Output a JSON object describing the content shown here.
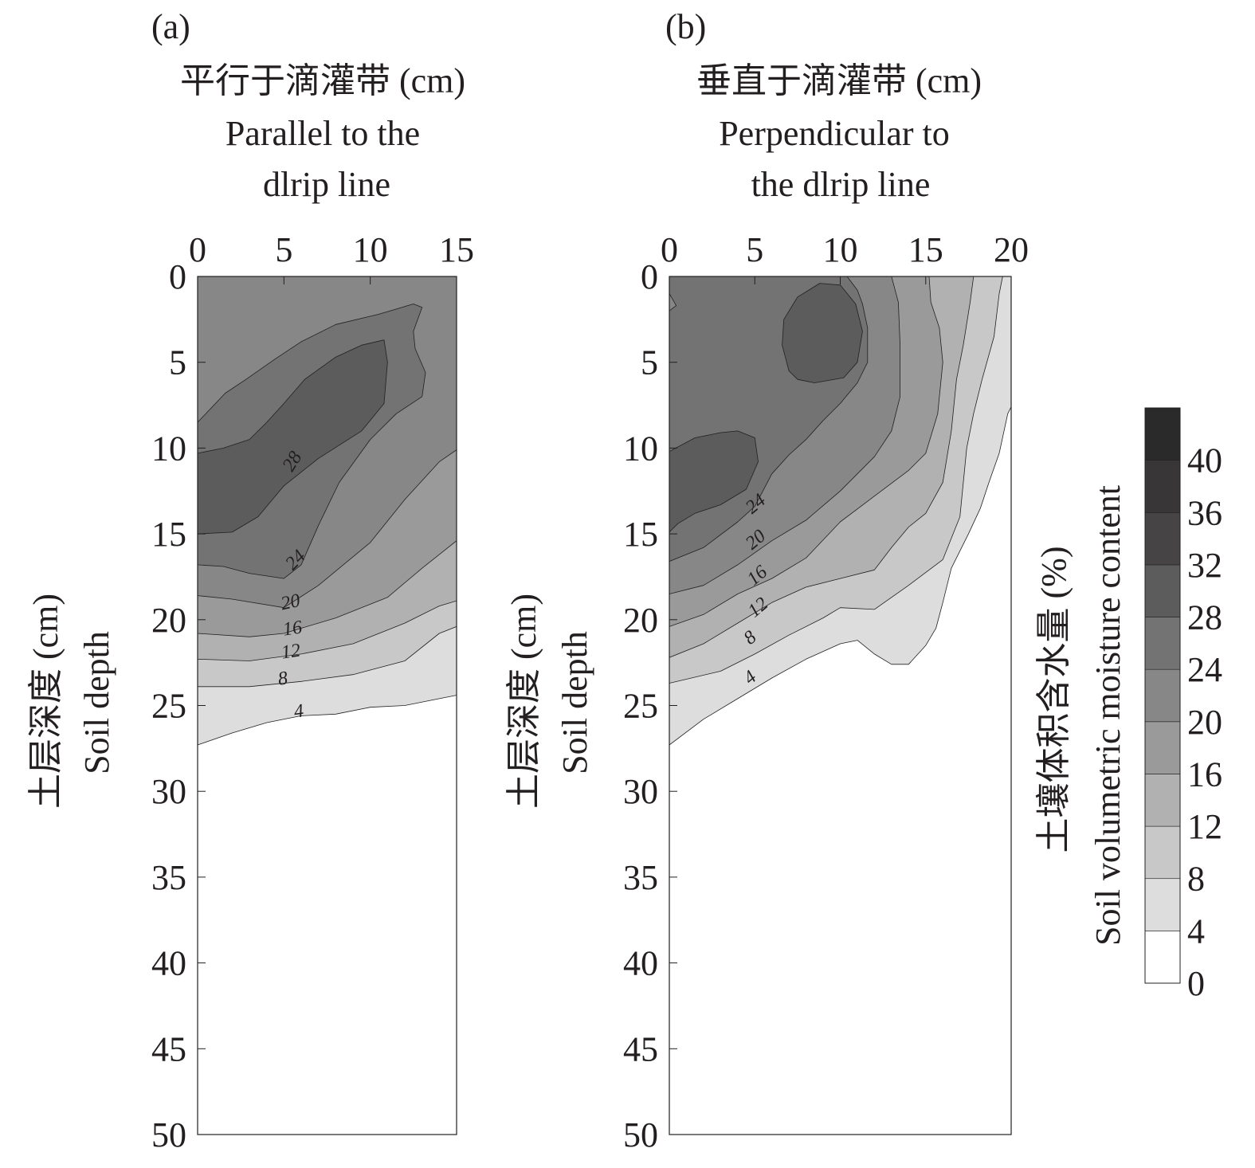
{
  "chart_data": [
    {
      "type": "contour",
      "panel_label": "(a)",
      "title_cn": "平行于滴灌带 (cm)",
      "title_en_line1": "Parallel to the",
      "title_en_line2": "dlrip line",
      "ylabel_cn": "土层深度 (cm)",
      "ylabel_en": "Soil depth",
      "x_ticks": [
        "0",
        "5",
        "10",
        "15"
      ],
      "y_ticks": [
        "0",
        "5",
        "10",
        "15",
        "20",
        "25",
        "30",
        "35",
        "40",
        "45",
        "50"
      ],
      "xlim": [
        0,
        15
      ],
      "ylim": [
        0,
        50
      ],
      "contour_labels": [
        "28",
        "24",
        "20",
        "16",
        "12",
        "8",
        "4"
      ],
      "contours": [
        {
          "level": 4,
          "boundary": [
            [
              0,
              27.3
            ],
            [
              2,
              26.6
            ],
            [
              4,
              26
            ],
            [
              6,
              25.6
            ],
            [
              8,
              25.5
            ],
            [
              10,
              25.1
            ],
            [
              12,
              25.0
            ],
            [
              14,
              24.6
            ],
            [
              15,
              24.4
            ]
          ]
        },
        {
          "level": 8,
          "boundary": [
            [
              0,
              23.9
            ],
            [
              3,
              23.9
            ],
            [
              6,
              23.6
            ],
            [
              9,
              23.2
            ],
            [
              12,
              22.4
            ],
            [
              14,
              20.8
            ],
            [
              15,
              20.4
            ]
          ]
        },
        {
          "level": 12,
          "boundary": [
            [
              0,
              22.3
            ],
            [
              3,
              22.4
            ],
            [
              6,
              22.0
            ],
            [
              9,
              21.4
            ],
            [
              12,
              20.2
            ],
            [
              14,
              19.2
            ],
            [
              15,
              18.9
            ]
          ]
        },
        {
          "level": 16,
          "boundary": [
            [
              0,
              20.8
            ],
            [
              3,
              21.0
            ],
            [
              5,
              20.8
            ],
            [
              8,
              19.9
            ],
            [
              11,
              18.7
            ],
            [
              13,
              17.0
            ],
            [
              15,
              15.4
            ]
          ]
        },
        {
          "level": 20,
          "boundary": [
            [
              0,
              18.6
            ],
            [
              2,
              18.8
            ],
            [
              5,
              19.3
            ],
            [
              7,
              18.0
            ],
            [
              10,
              15.5
            ],
            [
              12,
              13.0
            ],
            [
              14,
              10.8
            ],
            [
              15,
              10.1
            ]
          ]
        },
        {
          "level": 24,
          "boundary": [
            [
              0,
              8.5
            ],
            [
              1.6,
              6.8
            ],
            [
              2.8,
              6.0
            ],
            [
              4.5,
              4.8
            ],
            [
              6,
              3.8
            ],
            [
              8,
              2.8
            ],
            [
              10.5,
              2.2
            ],
            [
              12.5,
              1.6
            ],
            [
              13,
              1.8
            ],
            [
              12.5,
              3.2
            ],
            [
              12.6,
              4.2
            ],
            [
              13.2,
              5.6
            ],
            [
              13.0,
              7.0
            ],
            [
              11.5,
              8.0
            ],
            [
              10.0,
              9.5
            ],
            [
              8.2,
              12.0
            ],
            [
              7.0,
              14.5
            ],
            [
              6.0,
              16.8
            ],
            [
              5.0,
              17.6
            ],
            [
              3.0,
              17.3
            ],
            [
              1.5,
              16.9
            ],
            [
              0,
              16.8
            ]
          ]
        },
        {
          "level": 28,
          "boundary": [
            [
              0,
              10.3
            ],
            [
              1.5,
              10.0
            ],
            [
              3.0,
              9.5
            ],
            [
              4.0,
              8.5
            ],
            [
              5.0,
              7.4
            ],
            [
              6.2,
              6.0
            ],
            [
              8.0,
              4.7
            ],
            [
              9.5,
              4.0
            ],
            [
              10.8,
              3.7
            ],
            [
              11.0,
              5.0
            ],
            [
              10.8,
              7.4
            ],
            [
              9.5,
              9.0
            ],
            [
              7.0,
              10.6
            ],
            [
              5.0,
              12.2
            ],
            [
              3.5,
              14.0
            ],
            [
              2.0,
              14.9
            ],
            [
              0,
              15.0
            ]
          ]
        }
      ]
    },
    {
      "type": "contour",
      "panel_label": "(b)",
      "title_cn": "垂直于滴灌带 (cm)",
      "title_en_line1": "Perpendicular to",
      "title_en_line2": "the dlrip line",
      "ylabel_cn": "土层深度 (cm)",
      "ylabel_en": "Soil depth",
      "x_ticks": [
        "0",
        "5",
        "10",
        "15",
        "20"
      ],
      "y_ticks": [
        "0",
        "5",
        "10",
        "15",
        "20",
        "25",
        "30",
        "35",
        "40",
        "45",
        "50"
      ],
      "xlim": [
        0,
        20
      ],
      "ylim": [
        0,
        50
      ],
      "contour_labels": [
        "24",
        "20",
        "16",
        "12",
        "8",
        "4"
      ],
      "contours": [
        {
          "level": 4,
          "boundary": [
            [
              0,
              27.3
            ],
            [
              2,
              25.8
            ],
            [
              4,
              24.6
            ],
            [
              6,
              23.4
            ],
            [
              8,
              22.3
            ],
            [
              10,
              21.4
            ],
            [
              11,
              21.2
            ],
            [
              12,
              22.0
            ],
            [
              13,
              22.6
            ],
            [
              14,
              22.6
            ],
            [
              15,
              21.5
            ],
            [
              15.6,
              20.5
            ],
            [
              16,
              19.0
            ],
            [
              16.5,
              17.0
            ],
            [
              17.5,
              15.0
            ],
            [
              18.2,
              13.5
            ],
            [
              18.7,
              12.0
            ],
            [
              19.3,
              10.3
            ],
            [
              19.8,
              8.0
            ],
            [
              20,
              7.6
            ],
            [
              20,
              0
            ],
            [
              19.8,
              0
            ]
          ]
        },
        {
          "level": 8,
          "boundary": [
            [
              0,
              23.7
            ],
            [
              3,
              23.0
            ],
            [
              5,
              22.0
            ],
            [
              7,
              20.9
            ],
            [
              9,
              19.9
            ],
            [
              10,
              19.3
            ],
            [
              12,
              19.4
            ],
            [
              14,
              18.0
            ],
            [
              16,
              16.5
            ],
            [
              17,
              14.0
            ],
            [
              17.4,
              10.0
            ],
            [
              17.8,
              8.0
            ],
            [
              18.3,
              6.0
            ],
            [
              19.0,
              3.5
            ],
            [
              19.3,
              1.0
            ],
            [
              19.5,
              0
            ]
          ]
        },
        {
          "level": 12,
          "boundary": [
            [
              0,
              22.2
            ],
            [
              2,
              21.4
            ],
            [
              4,
              20.2
            ],
            [
              6,
              19.0
            ],
            [
              8,
              18.1
            ],
            [
              10,
              17.6
            ],
            [
              12,
              17.1
            ],
            [
              13,
              15.8
            ],
            [
              14,
              14.6
            ],
            [
              15,
              13.8
            ],
            [
              16,
              12.0
            ],
            [
              16.5,
              9.0
            ],
            [
              16.8,
              6.0
            ],
            [
              17.2,
              4.0
            ],
            [
              17.6,
              1.5
            ],
            [
              17.8,
              0
            ]
          ]
        },
        {
          "level": 16,
          "boundary": [
            [
              0,
              20.4
            ],
            [
              2,
              19.7
            ],
            [
              4,
              18.5
            ],
            [
              6,
              17.6
            ],
            [
              8,
              16.4
            ],
            [
              10,
              14.3
            ],
            [
              12,
              12.8
            ],
            [
              14,
              11.3
            ],
            [
              15,
              10.3
            ],
            [
              15.7,
              8.0
            ],
            [
              16.0,
              5.0
            ],
            [
              15.8,
              3.0
            ],
            [
              15.3,
              1.5
            ],
            [
              15.2,
              0
            ]
          ]
        },
        {
          "level": 20,
          "boundary": [
            [
              0,
              18.5
            ],
            [
              2,
              18.0
            ],
            [
              4,
              16.8
            ],
            [
              6,
              15.4
            ],
            [
              8,
              14.2
            ],
            [
              10,
              12.5
            ],
            [
              12,
              10.5
            ],
            [
              13.0,
              9.0
            ],
            [
              13.5,
              7.0
            ],
            [
              13.5,
              4.0
            ],
            [
              13.4,
              1.5
            ],
            [
              13.0,
              0
            ]
          ]
        },
        {
          "level": 24,
          "boundary": [
            [
              0,
              16.6
            ],
            [
              2,
              15.8
            ],
            [
              4,
              14.3
            ],
            [
              5,
              13.4
            ],
            [
              6,
              11.5
            ],
            [
              7,
              10.4
            ],
            [
              8,
              9.5
            ],
            [
              9,
              8.4
            ],
            [
              10,
              7.4
            ],
            [
              11,
              6.2
            ],
            [
              11.6,
              5.0
            ],
            [
              11.6,
              3.0
            ],
            [
              11.3,
              1.6
            ],
            [
              11.0,
              0.8
            ],
            [
              10.4,
              0
            ],
            [
              0,
              0
            ],
            [
              0,
              1.0
            ],
            [
              0.4,
              1.7
            ],
            [
              0,
              2.0
            ]
          ]
        },
        {
          "level": 28,
          "boundary": [
            [
              0,
              10.2
            ],
            [
              1.5,
              9.4
            ],
            [
              3.0,
              9.1
            ],
            [
              4.0,
              9.0
            ],
            [
              5.0,
              9.4
            ],
            [
              5.2,
              10.8
            ],
            [
              4.5,
              12.4
            ],
            [
              3.0,
              13.3
            ],
            [
              1.5,
              13.8
            ],
            [
              0.5,
              14.4
            ],
            [
              0,
              14.9
            ]
          ]
        },
        {
          "level": 28,
          "boundary": [
            [
              7.0,
              5.5
            ],
            [
              6.6,
              4.0
            ],
            [
              6.7,
              2.5
            ],
            [
              7.5,
              1.2
            ],
            [
              8.8,
              0.4
            ],
            [
              10.0,
              0.5
            ],
            [
              10.9,
              1.6
            ],
            [
              11.3,
              3.2
            ],
            [
              11.0,
              5.0
            ],
            [
              10.2,
              5.9
            ],
            [
              8.5,
              6.2
            ],
            [
              7.5,
              6.0
            ]
          ]
        }
      ]
    },
    {
      "type": "colorbar",
      "label_cn": "土壤体积含水量 (%)",
      "label_en": "Soil volumetric moisture content",
      "tick_labels": [
        "0",
        "4",
        "8",
        "12",
        "16",
        "20",
        "24",
        "28",
        "32",
        "36",
        "40"
      ],
      "levels": [
        0,
        4,
        8,
        12,
        16,
        20,
        24,
        28,
        32,
        36,
        40,
        44
      ],
      "colors": [
        "#ffffff",
        "#dddddd",
        "#c8c8c8",
        "#b1b1b1",
        "#9a9a9a",
        "#878787",
        "#737373",
        "#5c5c5c",
        "#464445",
        "#383637",
        "#2a2a2a",
        "#231f20"
      ]
    }
  ]
}
